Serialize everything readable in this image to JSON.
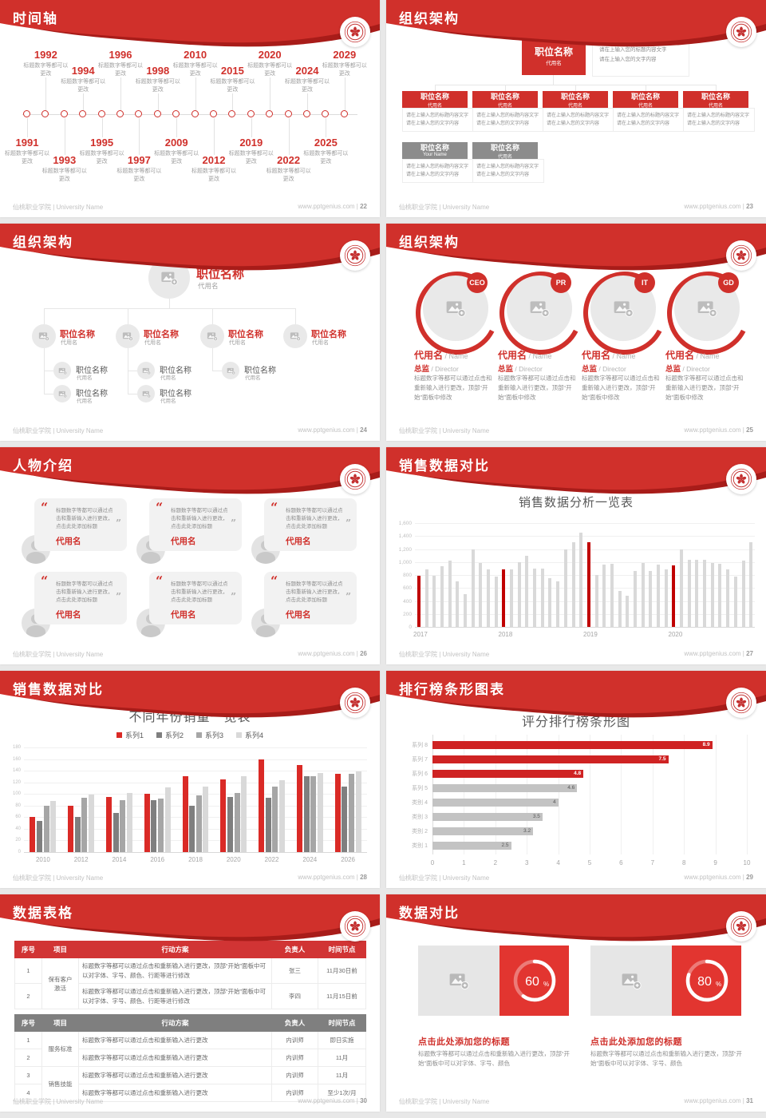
{
  "brand": {
    "school_footer": "仙桃职业学院 | University Name",
    "site": "www.pptgenius.com",
    "separator": " | ",
    "logo": "university-seal",
    "colors": {
      "header_red": "#d0302b",
      "header_dark_red": "#a81c19",
      "table_red": "#d13434",
      "table_gray": "#7f7f7f",
      "donut_red": "#e23530"
    }
  },
  "slides": [
    {
      "id": "timeline",
      "title": "时间轴",
      "page": "22",
      "milestone_desc": "标题数字等都可以更改",
      "milestones": [
        {
          "year": "1991",
          "pos": "bottom-near"
        },
        {
          "year": "1992",
          "pos": "top-far"
        },
        {
          "year": "1993",
          "pos": "bottom-far"
        },
        {
          "year": "1994",
          "pos": "top-near"
        },
        {
          "year": "1995",
          "pos": "bottom-near"
        },
        {
          "year": "1996",
          "pos": "top-far"
        },
        {
          "year": "1997",
          "pos": "bottom-far"
        },
        {
          "year": "1998",
          "pos": "top-near"
        },
        {
          "year": "2009",
          "pos": "bottom-near"
        },
        {
          "year": "2010",
          "pos": "top-far"
        },
        {
          "year": "2012",
          "pos": "bottom-far"
        },
        {
          "year": "2015",
          "pos": "top-near"
        },
        {
          "year": "2019",
          "pos": "bottom-near"
        },
        {
          "year": "2020",
          "pos": "top-far"
        },
        {
          "year": "2022",
          "pos": "bottom-far"
        },
        {
          "year": "2024",
          "pos": "top-near"
        },
        {
          "year": "2025",
          "pos": "bottom-near"
        },
        {
          "year": "2029",
          "pos": "top-far"
        }
      ]
    },
    {
      "id": "org-boxes",
      "title": "组织架构",
      "page": "23",
      "root": {
        "title": "职位名称",
        "subtitle": "代用名"
      },
      "note_lines": [
        "请在上输入您的标题内容文字",
        "请在上输入您的文字内容"
      ],
      "desc_lines": [
        "请在上输入您的标题内容文字",
        "请在上输入您的文字内容"
      ],
      "children": [
        {
          "title": "职位名称",
          "subtitle": "代用名"
        },
        {
          "title": "职位名称",
          "subtitle": "代用名"
        },
        {
          "title": "职位名称",
          "subtitle": "代用名"
        },
        {
          "title": "职位名称",
          "subtitle": "代用名"
        },
        {
          "title": "职位名称",
          "subtitle": "代用名"
        }
      ],
      "extra": [
        {
          "title": "职位名称",
          "subtitle": "Your Name"
        },
        {
          "title": "职位名称",
          "subtitle": "代用名"
        }
      ]
    },
    {
      "id": "org-tree",
      "title": "组织架构",
      "page": "24",
      "root": {
        "title": "职位名称",
        "subtitle": "代用名"
      },
      "node_label": {
        "title": "职位名称",
        "subtitle": "代用名"
      },
      "nodes": [
        {
          "subs": 2
        },
        {
          "subs": 2
        },
        {
          "subs": 1
        },
        {
          "subs": 0
        }
      ]
    },
    {
      "id": "org-circles",
      "title": "组织架构",
      "page": "25",
      "members": [
        {
          "badge": "CEO"
        },
        {
          "badge": "PR"
        },
        {
          "badge": "IT"
        },
        {
          "badge": "GD"
        }
      ],
      "name": "代用名",
      "name_en": "Name",
      "role": "总监",
      "role_en": "Director",
      "desc": "标题数字等都可以通过点击和重新输入进行更改，顶部“开始”面板中修改"
    },
    {
      "id": "people",
      "title": "人物介绍",
      "page": "26",
      "cards": [
        {
          "quote": "标题数字等都可以通过点击和重新输入进行更改，点击此处添加标题",
          "name": "代用名"
        },
        {
          "quote": "标题数字等都可以通过点击和重新输入进行更改，点击此处添加标题",
          "name": "代用名"
        },
        {
          "quote": "标题数字等都可以通过点击和重新输入进行更改，点击此处添加标题",
          "name": "代用名"
        },
        {
          "quote": "标题数字等都可以通过点击和重新输入进行更改，点击此处添加标题",
          "name": "代用名"
        },
        {
          "quote": "标题数字等都可以通过点击和重新输入进行更改，点击此处添加标题",
          "name": "代用名"
        },
        {
          "quote": "标题数字等都可以通过点击和重新输入进行更改，点击此处添加标题",
          "name": "代用名"
        }
      ]
    },
    {
      "id": "sales-bars",
      "title": "销售数据对比",
      "page": "27",
      "chart_index": 0
    },
    {
      "id": "grouped-bars",
      "title": "销售数据对比",
      "page": "28",
      "chart_index": 1
    },
    {
      "id": "ranking",
      "title": "排行榜条形图表",
      "page": "29",
      "chart_index": 2
    },
    {
      "id": "tables",
      "title": "数据表格",
      "page": "30",
      "columns": [
        "序号",
        "项目",
        "行动方案",
        "负责人",
        "时间节点"
      ],
      "table1": {
        "project": "保有客户激活",
        "plan": "标题数字等都可以通过点击和重新输入进行更改，顶部“开始”面板中可以对字体、字号、颜色、行距等进行修改",
        "rows": [
          {
            "no": "1",
            "owner": "张三",
            "deadline": "11月30日前"
          },
          {
            "no": "2",
            "owner": "李四",
            "deadline": "11月15日前"
          }
        ]
      },
      "table2": {
        "plan": "标题数字等都可以通过点击和重新输入进行更改",
        "groups": [
          {
            "project": "服务标准",
            "rows": [
              {
                "no": "1",
                "owner": "内训师",
                "deadline": "即日实施"
              },
              {
                "no": "2",
                "owner": "内训师",
                "deadline": "11月"
              }
            ]
          },
          {
            "project": "销售技能",
            "rows": [
              {
                "no": "3",
                "owner": "内训师",
                "deadline": "11月"
              },
              {
                "no": "4",
                "owner": "内训师",
                "deadline": "至少1次/月"
              }
            ]
          }
        ]
      }
    },
    {
      "id": "donuts",
      "title": "数据对比",
      "page": "31",
      "panels": [
        {
          "percent": 60,
          "unit": "%",
          "title": "点击此处添加您的标题",
          "desc": "标题数字等都可以通过点击和重新输入进行更改，顶部“开始”面板中可以对字体、字号、颜色"
        },
        {
          "percent": 80,
          "unit": "%",
          "title": "点击此处添加您的标题",
          "desc": "标题数字等都可以通过点击和重新输入进行更改，顶部“开始”面板中可以对字体、字号、颜色"
        }
      ]
    }
  ],
  "chart_data": [
    {
      "type": "bar",
      "title": "销售数据分析一览表",
      "x_group_labels": [
        "2017",
        "2018",
        "2019",
        "2020"
      ],
      "group_start_indices": [
        0,
        11,
        22,
        33
      ],
      "values": [
        790,
        890,
        790,
        940,
        1020,
        700,
        510,
        1200,
        990,
        890,
        770,
        890,
        890,
        1000,
        1100,
        900,
        900,
        750,
        700,
        1200,
        1300,
        1450,
        1300,
        800,
        960,
        970,
        560,
        480,
        860,
        980,
        860,
        960,
        890,
        950,
        1200,
        1030,
        1040,
        1030,
        990,
        970,
        890,
        770,
        1020,
        1300
      ],
      "highlight_indices": [
        0,
        11,
        22,
        33
      ],
      "bar_color": "#d9d9d9",
      "highlight_color": "#c00000",
      "ylim": [
        0,
        1600
      ],
      "ystep": 200,
      "grid": true,
      "legend": false
    },
    {
      "type": "bar",
      "title": "不同年份销量一览表",
      "categories": [
        "2010",
        "2012",
        "2014",
        "2016",
        "2018",
        "2020",
        "2022",
        "2024",
        "2026"
      ],
      "series": [
        {
          "name": "系列1",
          "color": "#da2a26",
          "values": [
            60,
            80,
            95,
            100,
            130,
            125,
            160,
            150,
            135
          ]
        },
        {
          "name": "系列2",
          "color": "#7f7f7f",
          "values": [
            53,
            60,
            68,
            90,
            80,
            95,
            94,
            130,
            113
          ]
        },
        {
          "name": "系列3",
          "color": "#a6a6a6",
          "values": [
            80,
            93,
            90,
            92,
            97,
            101,
            113,
            130,
            135
          ]
        },
        {
          "name": "系列4",
          "color": "#d9d9d9",
          "values": [
            88,
            99,
            102,
            111,
            113,
            130,
            124,
            136,
            139
          ]
        }
      ],
      "ylim": [
        0,
        180
      ],
      "ystep": 20,
      "grid": true,
      "legend": true,
      "legend_position": "top"
    },
    {
      "type": "bar-horizontal",
      "title": "评分排行榜条形图",
      "categories": [
        "系列 8",
        "系列 7",
        "系列 6",
        "系列 5",
        "类别 4",
        "类别 3",
        "类别 2",
        "类别 1"
      ],
      "values": [
        8.9,
        7.5,
        4.8,
        4.6,
        4,
        3.5,
        3.2,
        2.5
      ],
      "value_labels": [
        "8.9",
        "7.5",
        "4.8",
        "4.6",
        "4",
        "3.5",
        "3.2",
        "2.5"
      ],
      "colors": [
        "#cf2323",
        "#cf2323",
        "#cf2323",
        "#c3c3c3",
        "#c3c3c3",
        "#c3c3c3",
        "#c3c3c3",
        "#c3c3c3"
      ],
      "xlim": [
        0,
        10
      ],
      "xstep": 1,
      "grid": true,
      "legend": false
    }
  ]
}
